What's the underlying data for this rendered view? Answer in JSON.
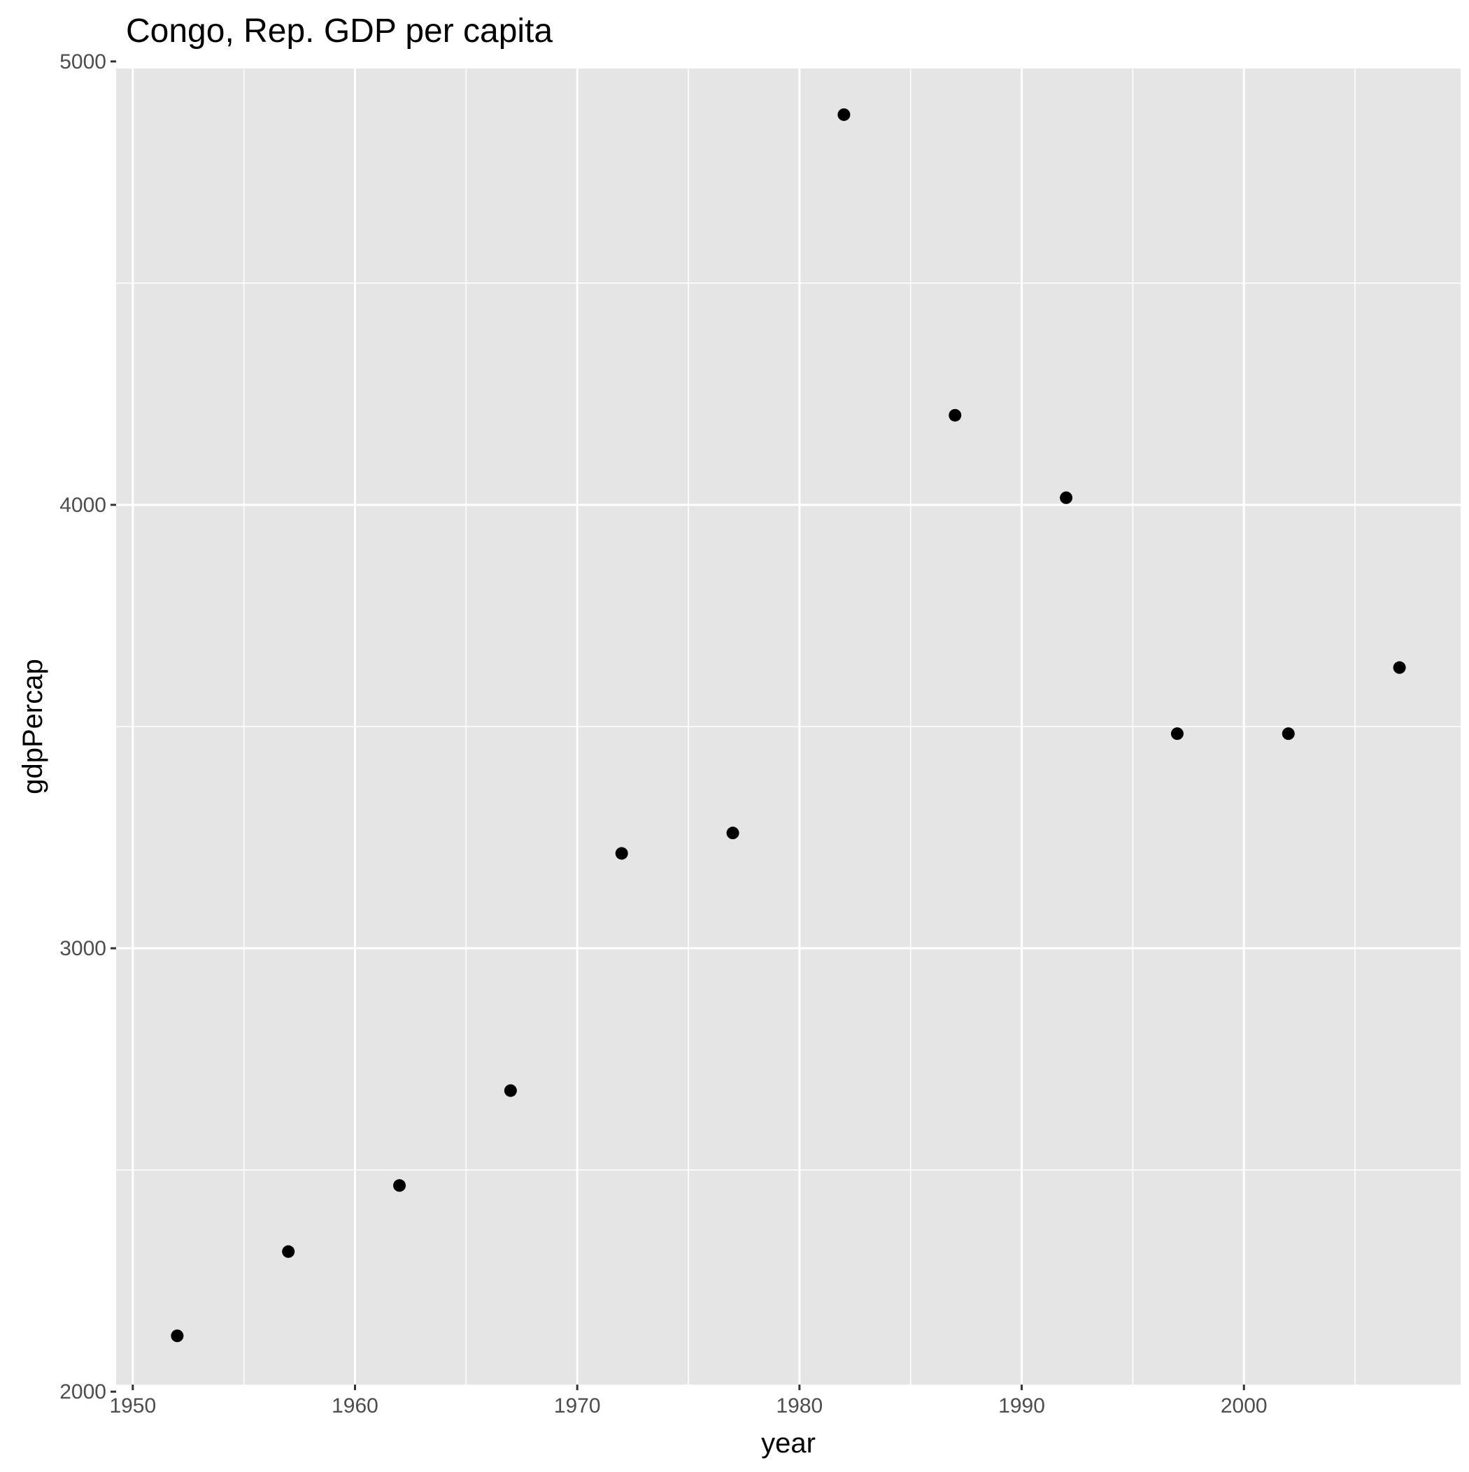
{
  "chart_data": {
    "type": "scatter",
    "title": "Congo, Rep. GDP per capita",
    "xlabel": "year",
    "ylabel": "gdpPercap",
    "xlim": [
      1949.25,
      2009.75
    ],
    "ylim": [
      2016,
      4984
    ],
    "x_ticks": [
      1950,
      1960,
      1970,
      1980,
      1990,
      2000
    ],
    "x_tick_labels": [
      "1950",
      "1960",
      "1970",
      "1980",
      "1990",
      "2000"
    ],
    "y_ticks": [
      2000,
      3000,
      4000,
      5000
    ],
    "y_tick_labels": [
      "2000",
      "3000",
      "4000",
      "5000"
    ],
    "grid": true,
    "legend": "none",
    "colors": {
      "panel": "#e5e5e5",
      "grid": "#ffffff",
      "point": "#000000",
      "tick_text": "#4d4d4d",
      "tick_mark": "#333333"
    },
    "x": [
      1952,
      1957,
      1962,
      1967,
      1972,
      1977,
      1982,
      1987,
      1992,
      1997,
      2002,
      2007
    ],
    "y": [
      2126,
      2316,
      2465,
      2679,
      3214,
      3260,
      4880,
      4202,
      4016,
      3484,
      3484,
      3633
    ]
  }
}
